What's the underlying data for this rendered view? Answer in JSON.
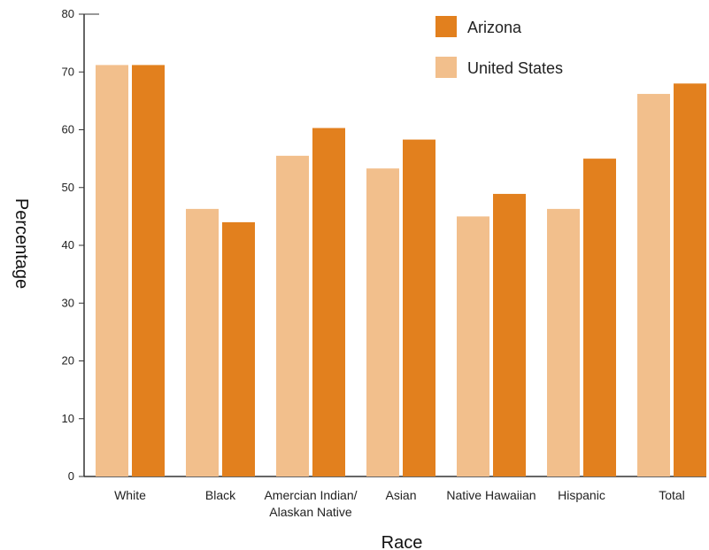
{
  "chart_data": {
    "type": "bar",
    "xlabel": "Race",
    "ylabel": "Percentage",
    "ylim": [
      0,
      80
    ],
    "yticks": [
      0,
      10,
      20,
      30,
      40,
      50,
      60,
      70,
      80
    ],
    "categories": [
      [
        "White"
      ],
      [
        "Black"
      ],
      [
        "Amercian Indian/",
        "Alaskan Native"
      ],
      [
        "Asian"
      ],
      [
        "Native Hawaiian"
      ],
      [
        "Hispanic"
      ],
      [
        "Total"
      ]
    ],
    "series": [
      {
        "name": "United States",
        "color": "#F2BF8C",
        "values": [
          71.2,
          46.3,
          55.5,
          53.3,
          45.0,
          46.3,
          66.2
        ]
      },
      {
        "name": "Arizona",
        "color": "#E2801E",
        "values": [
          71.2,
          44.0,
          60.3,
          58.3,
          48.9,
          55.0,
          68.0
        ]
      }
    ],
    "legend": {
      "position": "top-right",
      "order": [
        "Arizona",
        "United States"
      ]
    },
    "grid": false
  }
}
